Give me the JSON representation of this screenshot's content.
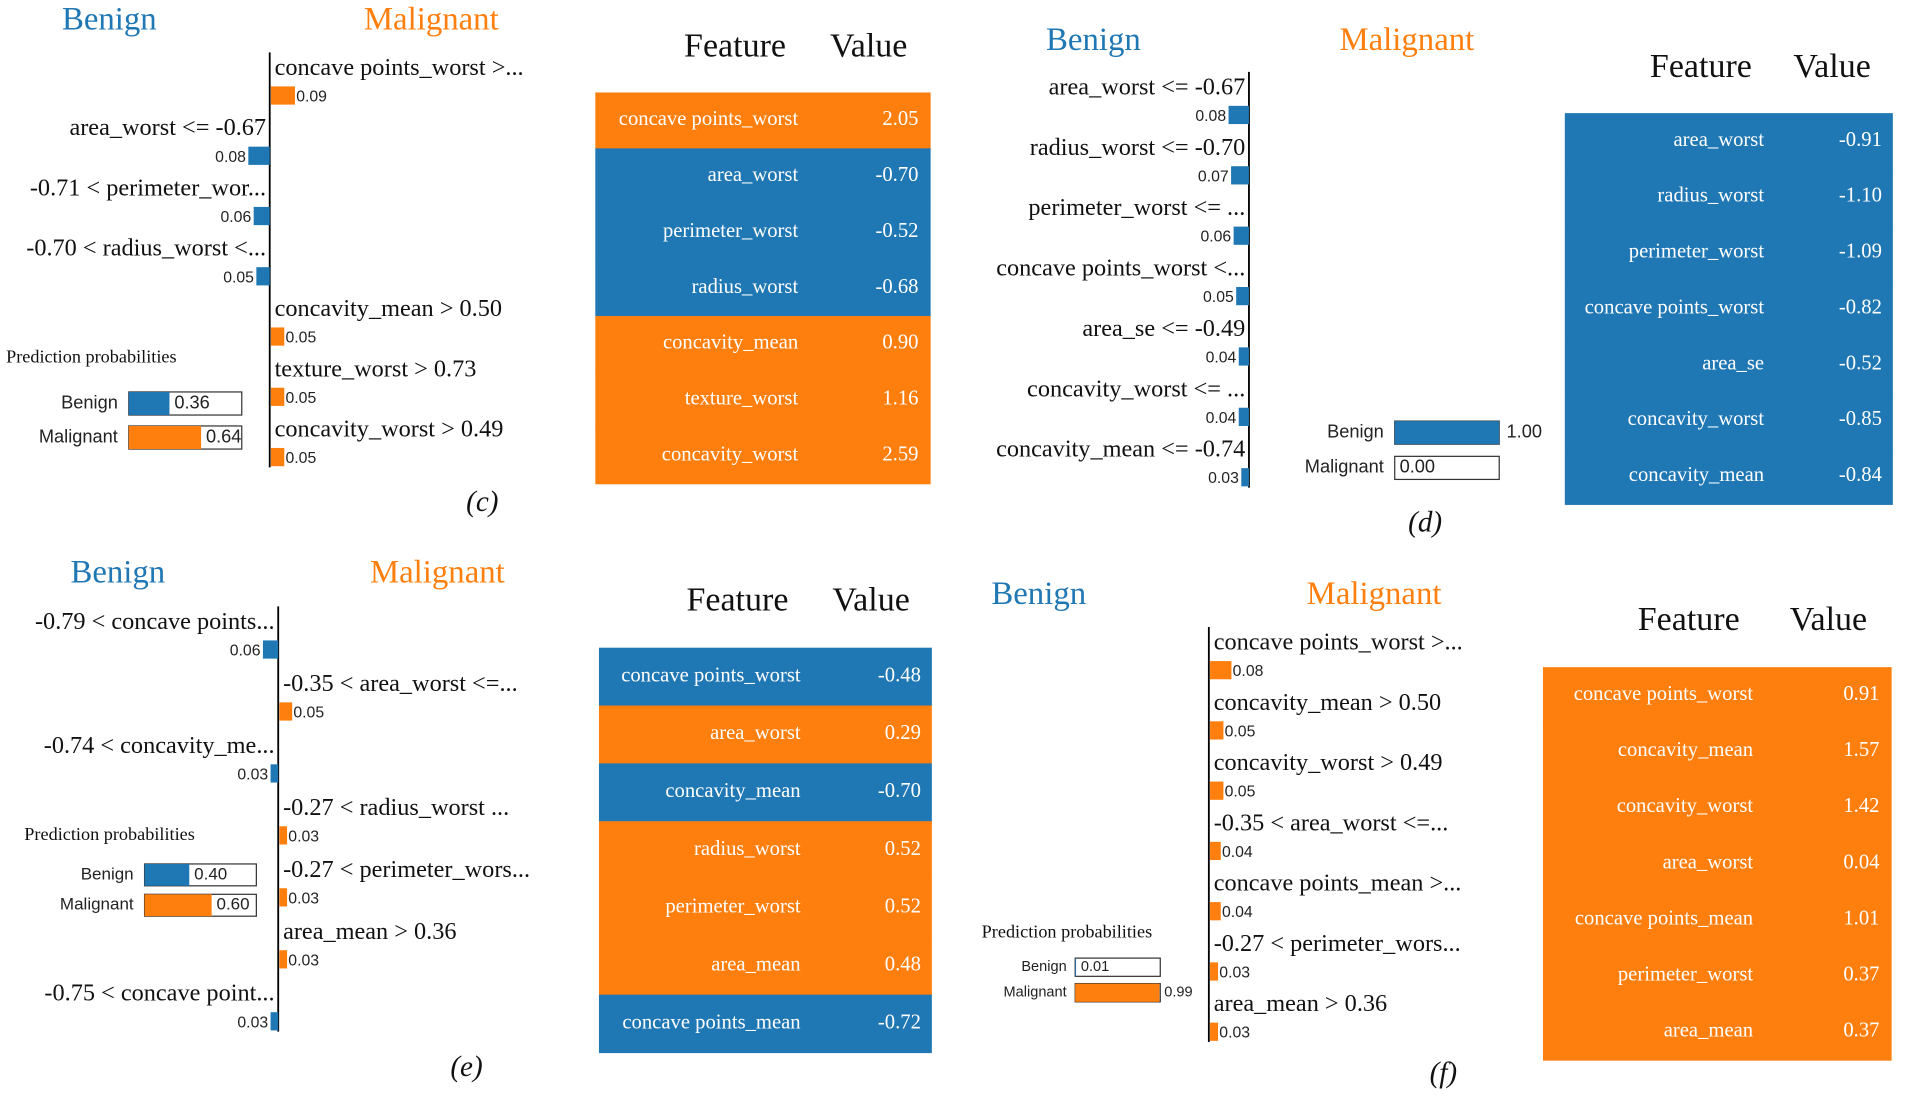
{
  "panels": [
    {
      "label": "(c)",
      "explanation": {
        "type": "bar",
        "orientation": "horizontal",
        "categories": [
          "concave points_worst >...",
          "area_worst <= -0.67",
          "-0.71 < perimeter_wor...",
          "-0.70 < radius_worst <...",
          "concavity_mean > 0.50",
          "texture_worst > 0.73",
          "concavity_worst > 0.49"
        ],
        "series": [
          {
            "name": "Benign",
            "color": "#1f77b4",
            "values": [
              null,
              0.08,
              0.06,
              0.05,
              null,
              null,
              null
            ]
          },
          {
            "name": "Malignant",
            "color": "#ff7f0e",
            "values": [
              0.09,
              null,
              null,
              null,
              0.05,
              0.05,
              0.05
            ]
          }
        ]
      },
      "probabilities": {
        "type": "bar",
        "orientation": "horizontal",
        "title": "Prediction probabilities",
        "categories": [
          "Benign",
          "Malignant"
        ],
        "values": [
          0.36,
          0.64
        ],
        "colors": [
          "#1f77b4",
          "#ff7f0e"
        ],
        "xlim": [
          0,
          1
        ]
      },
      "table": {
        "header": [
          "Feature",
          "Value"
        ],
        "rows": [
          [
            "concave points_worst",
            "2.05"
          ],
          [
            "area_worst",
            "-0.70"
          ],
          [
            "perimeter_worst",
            "-0.52"
          ],
          [
            "radius_worst",
            "-0.68"
          ],
          [
            "concavity_mean",
            "0.90"
          ],
          [
            "texture_worst",
            "1.16"
          ],
          [
            "concavity_worst",
            "2.59"
          ]
        ]
      }
    },
    {
      "label": "(d)",
      "explanation": {
        "type": "bar",
        "orientation": "horizontal",
        "categories": [
          "area_worst <= -0.67",
          "radius_worst <= -0.70",
          "perimeter_worst <= ...",
          "concave points_worst <...",
          "area_se <= -0.49",
          "concavity_worst <= ...",
          "concavity_mean <= -0.74"
        ],
        "series": [
          {
            "name": "Benign",
            "color": "#1f77b4",
            "values": [
              0.08,
              0.07,
              0.06,
              0.05,
              0.04,
              0.04,
              0.03
            ]
          },
          {
            "name": "Malignant",
            "color": "#ff7f0e",
            "values": [
              null,
              null,
              null,
              null,
              null,
              null,
              null
            ]
          }
        ]
      },
      "probabilities": {
        "type": "bar",
        "orientation": "horizontal",
        "categories": [
          "Benign",
          "Malignant"
        ],
        "values": [
          1,
          0
        ],
        "value_labels": [
          "1.00",
          "0.00"
        ],
        "colors": [
          "#1f77b4",
          "#ff7f0e"
        ],
        "xlim": [
          0,
          1
        ]
      },
      "table": {
        "header": [
          "Feature",
          "Value"
        ],
        "rows": [
          [
            "area_worst",
            "-0.91"
          ],
          [
            "radius_worst",
            "-1.10"
          ],
          [
            "perimeter_worst",
            "-1.09"
          ],
          [
            "concave points_worst",
            "-0.82"
          ],
          [
            "area_se",
            "-0.52"
          ],
          [
            "concavity_worst",
            "-0.85"
          ],
          [
            "concavity_mean",
            "-0.84"
          ]
        ]
      }
    },
    {
      "label": "(e)",
      "explanation": {
        "type": "bar",
        "orientation": "horizontal",
        "categories": [
          "-0.79 < concave points...",
          "-0.35 < area_worst <=...",
          "-0.74 < concavity_me...",
          "-0.27 < radius_worst ...",
          "-0.27 < perimeter_wors...",
          "area_mean > 0.36",
          "-0.75 < concave point..."
        ],
        "series": [
          {
            "name": "Benign",
            "color": "#1f77b4",
            "values": [
              0.06,
              null,
              0.03,
              null,
              null,
              null,
              0.03
            ]
          },
          {
            "name": "Malignant",
            "color": "#ff7f0e",
            "values": [
              null,
              0.05,
              null,
              0.03,
              0.03,
              0.03,
              null
            ]
          }
        ]
      },
      "probabilities": {
        "type": "bar",
        "orientation": "horizontal",
        "title": "Prediction probabilities",
        "categories": [
          "Benign",
          "Malignant"
        ],
        "values": [
          0.4,
          0.6
        ],
        "value_labels": [
          "0.40",
          "0.60"
        ],
        "colors": [
          "#1f77b4",
          "#ff7f0e"
        ],
        "xlim": [
          0,
          1
        ]
      },
      "table": {
        "header": [
          "Feature",
          "Value"
        ],
        "rows": [
          [
            "concave points_worst",
            "-0.48"
          ],
          [
            "area_worst",
            "0.29"
          ],
          [
            "concavity_mean",
            "-0.70"
          ],
          [
            "radius_worst",
            "0.52"
          ],
          [
            "perimeter_worst",
            "0.52"
          ],
          [
            "area_mean",
            "0.48"
          ],
          [
            "concave points_mean",
            "-0.72"
          ]
        ]
      }
    },
    {
      "label": "(f)",
      "explanation": {
        "type": "bar",
        "orientation": "horizontal",
        "categories": [
          "concave points_worst >...",
          "concavity_mean > 0.50",
          "concavity_worst > 0.49",
          "-0.35 < area_worst <=...",
          "concave points_mean >...",
          "-0.27 < perimeter_wors...",
          "area_mean > 0.36"
        ],
        "series": [
          {
            "name": "Benign",
            "color": "#1f77b4",
            "values": [
              null,
              null,
              null,
              null,
              null,
              null,
              null
            ]
          },
          {
            "name": "Malignant",
            "color": "#ff7f0e",
            "values": [
              0.08,
              0.05,
              0.05,
              0.04,
              0.04,
              0.03,
              0.03
            ]
          }
        ]
      },
      "probabilities": {
        "type": "bar",
        "orientation": "horizontal",
        "title": "Prediction probabilities",
        "categories": [
          "Benign",
          "Malignant"
        ],
        "values": [
          0.01,
          0.99
        ],
        "colors": [
          "#1f77b4",
          "#ff7f0e"
        ],
        "xlim": [
          0,
          1
        ]
      },
      "table": {
        "header": [
          "Feature",
          "Value"
        ],
        "rows": [
          [
            "concave points_worst",
            "0.91"
          ],
          [
            "concavity_mean",
            "1.57"
          ],
          [
            "concavity_worst",
            "1.42"
          ],
          [
            "area_worst",
            "0.04"
          ],
          [
            "concave points_mean",
            "1.01"
          ],
          [
            "perimeter_worst",
            "0.37"
          ],
          [
            "area_mean",
            "0.37"
          ]
        ]
      }
    }
  ]
}
